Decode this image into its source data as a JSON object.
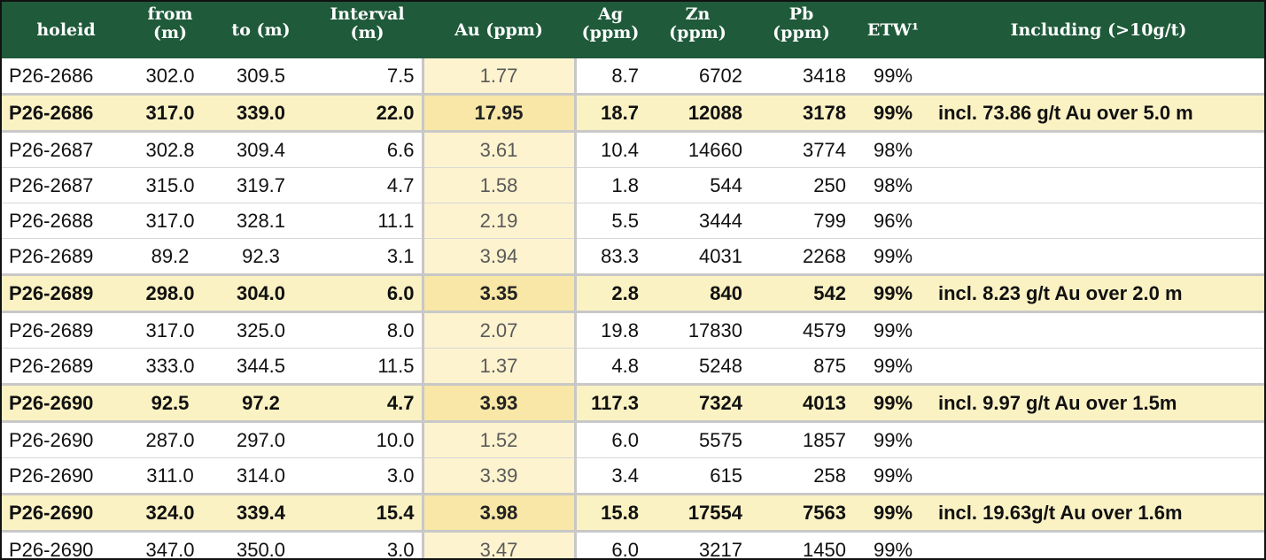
{
  "headers": {
    "holeid": "holeid",
    "from": "from (m)",
    "to": "to (m)",
    "interval": "Interval (m)",
    "au": "Au (ppm)",
    "ag": "Ag (ppm)",
    "zn": "Zn (ppm)",
    "pb": "Pb (ppm)",
    "etw": "ETW¹",
    "including": "Including (>10g/t)"
  },
  "rows": [
    {
      "holeid": "P26-2686",
      "from": "302.0",
      "to": "309.5",
      "interval": "7.5",
      "au": "1.77",
      "ag": "8.7",
      "zn": "6702",
      "pb": "3418",
      "etw": "99%",
      "including": "",
      "highlight": false
    },
    {
      "holeid": "P26-2686",
      "from": "317.0",
      "to": "339.0",
      "interval": "22.0",
      "au": "17.95",
      "ag": "18.7",
      "zn": "12088",
      "pb": "3178",
      "etw": "99%",
      "including": "incl. 73.86 g/t Au over 5.0 m",
      "highlight": true
    },
    {
      "holeid": "P26-2687",
      "from": "302.8",
      "to": "309.4",
      "interval": "6.6",
      "au": "3.61",
      "ag": "10.4",
      "zn": "14660",
      "pb": "3774",
      "etw": "98%",
      "including": "",
      "highlight": false
    },
    {
      "holeid": "P26-2687",
      "from": "315.0",
      "to": "319.7",
      "interval": "4.7",
      "au": "1.58",
      "ag": "1.8",
      "zn": "544",
      "pb": "250",
      "etw": "98%",
      "including": "",
      "highlight": false
    },
    {
      "holeid": "P26-2688",
      "from": "317.0",
      "to": "328.1",
      "interval": "11.1",
      "au": "2.19",
      "ag": "5.5",
      "zn": "3444",
      "pb": "799",
      "etw": "96%",
      "including": "",
      "highlight": false
    },
    {
      "holeid": "P26-2689",
      "from": "89.2",
      "to": "92.3",
      "interval": "3.1",
      "au": "3.94",
      "ag": "83.3",
      "zn": "4031",
      "pb": "2268",
      "etw": "99%",
      "including": "",
      "highlight": false
    },
    {
      "holeid": "P26-2689",
      "from": "298.0",
      "to": "304.0",
      "interval": "6.0",
      "au": "3.35",
      "ag": "2.8",
      "zn": "840",
      "pb": "542",
      "etw": "99%",
      "including": "incl. 8.23 g/t Au over 2.0 m",
      "highlight": true
    },
    {
      "holeid": "P26-2689",
      "from": "317.0",
      "to": "325.0",
      "interval": "8.0",
      "au": "2.07",
      "ag": "19.8",
      "zn": "17830",
      "pb": "4579",
      "etw": "99%",
      "including": "",
      "highlight": false
    },
    {
      "holeid": "P26-2689",
      "from": "333.0",
      "to": "344.5",
      "interval": "11.5",
      "au": "1.37",
      "ag": "4.8",
      "zn": "5248",
      "pb": "875",
      "etw": "99%",
      "including": "",
      "highlight": false
    },
    {
      "holeid": "P26-2690",
      "from": "92.5",
      "to": "97.2",
      "interval": "4.7",
      "au": "3.93",
      "ag": "117.3",
      "zn": "7324",
      "pb": "4013",
      "etw": "99%",
      "including": "incl. 9.97 g/t Au over 1.5m",
      "highlight": true
    },
    {
      "holeid": "P26-2690",
      "from": "287.0",
      "to": "297.0",
      "interval": "10.0",
      "au": "1.52",
      "ag": "6.0",
      "zn": "5575",
      "pb": "1857",
      "etw": "99%",
      "including": "",
      "highlight": false
    },
    {
      "holeid": "P26-2690",
      "from": "311.0",
      "to": "314.0",
      "interval": "3.0",
      "au": "3.39",
      "ag": "3.4",
      "zn": "615",
      "pb": "258",
      "etw": "99%",
      "including": "",
      "highlight": false
    },
    {
      "holeid": "P26-2690",
      "from": "324.0",
      "to": "339.4",
      "interval": "15.4",
      "au": "3.98",
      "ag": "15.8",
      "zn": "17554",
      "pb": "7563",
      "etw": "99%",
      "including": "incl. 19.63g/t Au over 1.6m",
      "highlight": true
    },
    {
      "holeid": "P26-2690",
      "from": "347.0",
      "to": "350.0",
      "interval": "3.0",
      "au": "3.47",
      "ag": "6.0",
      "zn": "3217",
      "pb": "1450",
      "etw": "99%",
      "including": "",
      "highlight": false
    }
  ],
  "colors": {
    "header_bg": "#1f5a3a",
    "highlight_row": "#fbf2c4",
    "au_column": "#fdf3cf"
  }
}
